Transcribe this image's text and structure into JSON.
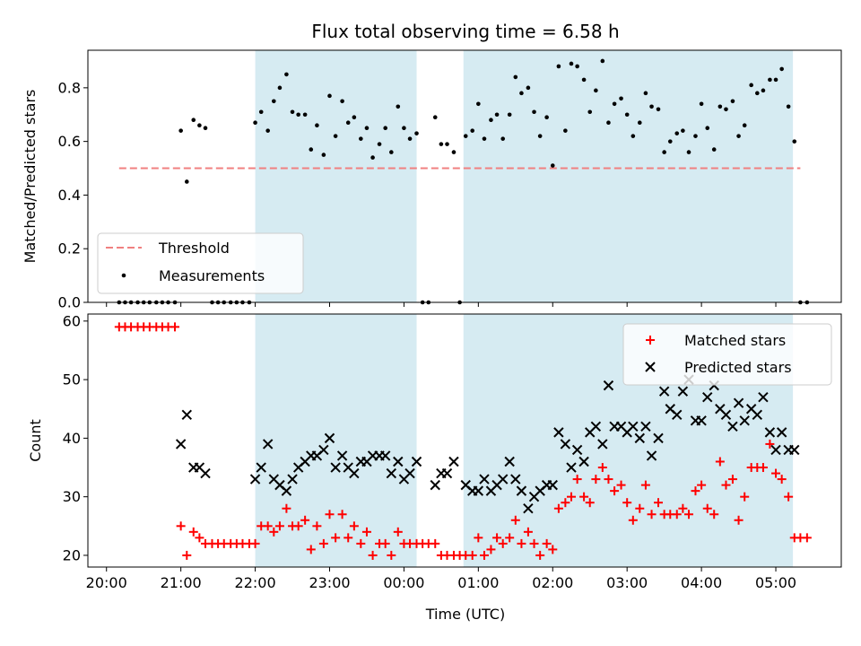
{
  "chart_data": [
    {
      "type": "scatter",
      "title": "Flux total observing time = 6.58 h",
      "xlabel": "",
      "ylabel": "Matched/Predicted stars",
      "xlim": [
        19.75,
        29.88
      ],
      "ylim": [
        0,
        0.94
      ],
      "yticks": [
        0.0,
        0.2,
        0.4,
        0.6,
        0.8
      ],
      "ytick_labels": [
        "0.0",
        "0.2",
        "0.4",
        "0.6",
        "0.8"
      ],
      "shaded_regions": [
        [
          22.0,
          24.17
        ],
        [
          24.8,
          29.23
        ]
      ],
      "legend": {
        "position": "lower-left",
        "entries": [
          "Threshold",
          "Measurements"
        ]
      },
      "series": [
        {
          "name": "Threshold",
          "kind": "dashed-line",
          "color": "#f08080",
          "x": [
            20.17,
            29.33
          ],
          "y": [
            0.5,
            0.5
          ]
        },
        {
          "name": "Measurements",
          "kind": "points",
          "color": "#000000",
          "x": [
            20.17,
            20.25,
            20.33,
            20.42,
            20.5,
            20.58,
            20.67,
            20.75,
            20.83,
            20.92,
            21.0,
            21.08,
            21.17,
            21.25,
            21.33,
            21.42,
            21.5,
            21.58,
            21.67,
            21.75,
            21.83,
            21.92,
            22.0,
            22.08,
            22.17,
            22.25,
            22.33,
            22.42,
            22.5,
            22.58,
            22.67,
            22.75,
            22.83,
            22.92,
            23.0,
            23.08,
            23.17,
            23.25,
            23.33,
            23.42,
            23.5,
            23.58,
            23.67,
            23.75,
            23.83,
            23.92,
            24.0,
            24.08,
            24.17,
            24.25,
            24.33,
            24.42,
            24.5,
            24.58,
            24.67,
            24.75,
            24.83,
            24.92,
            25.0,
            25.08,
            25.17,
            25.25,
            25.33,
            25.42,
            25.5,
            25.58,
            25.67,
            25.75,
            25.83,
            25.92,
            26.0,
            26.08,
            26.17,
            26.25,
            26.33,
            26.42,
            26.5,
            26.58,
            26.67,
            26.75,
            26.83,
            26.92,
            27.0,
            27.08,
            27.17,
            27.25,
            27.33,
            27.42,
            27.5,
            27.58,
            27.67,
            27.75,
            27.83,
            27.92,
            28.0,
            28.08,
            28.17,
            28.25,
            28.33,
            28.42,
            28.5,
            28.58,
            28.67,
            28.75,
            28.83,
            28.92,
            29.0,
            29.08,
            29.17,
            29.25,
            29.33,
            29.42
          ],
          "y": [
            0,
            0,
            0,
            0,
            0,
            0,
            0,
            0,
            0,
            0,
            0.64,
            0.45,
            0.68,
            0.66,
            0.65,
            0,
            0,
            0,
            0,
            0,
            0,
            0,
            0.67,
            0.71,
            0.64,
            0.75,
            0.8,
            0.85,
            0.71,
            0.7,
            0.7,
            0.57,
            0.66,
            0.55,
            0.77,
            0.62,
            0.75,
            0.67,
            0.69,
            0.61,
            0.65,
            0.54,
            0.59,
            0.65,
            0.56,
            0.73,
            0.65,
            0.61,
            0.63,
            0,
            0,
            0.69,
            0.59,
            0.59,
            0.56,
            0,
            0.62,
            0.64,
            0.74,
            0.61,
            0.68,
            0.7,
            0.61,
            0.7,
            0.84,
            0.78,
            0.8,
            0.71,
            0.62,
            0.69,
            0.51,
            0.88,
            0.64,
            0.89,
            0.88,
            0.83,
            0.71,
            0.79,
            0.9,
            0.67,
            0.74,
            0.76,
            0.7,
            0.62,
            0.67,
            0.78,
            0.73,
            0.72,
            0.56,
            0.6,
            0.63,
            0.64,
            0.56,
            0.62,
            0.74,
            0.65,
            0.57,
            0.73,
            0.72,
            0.75,
            0.62,
            0.66,
            0.81,
            0.78,
            0.79,
            0.83,
            0.83,
            0.87,
            0.73,
            0.6,
            0,
            0
          ]
        }
      ]
    },
    {
      "type": "scatter",
      "title": "",
      "xlabel": "Time (UTC)",
      "ylabel": "Count",
      "xlim": [
        19.75,
        29.88
      ],
      "ylim": [
        18,
        61.2
      ],
      "xticks": [
        20,
        21,
        22,
        23,
        24,
        25,
        26,
        27,
        28,
        29
      ],
      "xtick_labels": [
        "20:00",
        "21:00",
        "22:00",
        "23:00",
        "00:00",
        "01:00",
        "02:00",
        "03:00",
        "04:00",
        "05:00"
      ],
      "yticks": [
        20,
        30,
        40,
        50,
        60
      ],
      "ytick_labels": [
        "20",
        "30",
        "40",
        "50",
        "60"
      ],
      "shaded_regions": [
        [
          22.0,
          24.17
        ],
        [
          24.8,
          29.23
        ]
      ],
      "legend": {
        "position": "top-right",
        "entries": [
          "Matched stars",
          "Predicted stars"
        ]
      },
      "series": [
        {
          "name": "Matched stars",
          "marker": "plus",
          "color": "#ff0000",
          "x": [
            20.17,
            20.25,
            20.33,
            20.42,
            20.5,
            20.58,
            20.67,
            20.75,
            20.83,
            20.92,
            21.0,
            21.08,
            21.17,
            21.25,
            21.33,
            21.42,
            21.5,
            21.58,
            21.67,
            21.75,
            21.83,
            21.92,
            22.0,
            22.08,
            22.17,
            22.25,
            22.33,
            22.42,
            22.5,
            22.58,
            22.67,
            22.75,
            22.83,
            22.92,
            23.0,
            23.08,
            23.17,
            23.25,
            23.33,
            23.42,
            23.5,
            23.58,
            23.67,
            23.75,
            23.83,
            23.92,
            24.0,
            24.08,
            24.17,
            24.25,
            24.33,
            24.42,
            24.5,
            24.58,
            24.67,
            24.75,
            24.83,
            24.92,
            25.0,
            25.08,
            25.17,
            25.25,
            25.33,
            25.42,
            25.5,
            25.58,
            25.67,
            25.75,
            25.83,
            25.92,
            26.0,
            26.08,
            26.17,
            26.25,
            26.33,
            26.42,
            26.5,
            26.58,
            26.67,
            26.75,
            26.83,
            26.92,
            27.0,
            27.08,
            27.17,
            27.25,
            27.33,
            27.42,
            27.5,
            27.58,
            27.67,
            27.75,
            27.83,
            27.92,
            28.0,
            28.08,
            28.17,
            28.25,
            28.33,
            28.42,
            28.5,
            28.58,
            28.67,
            28.75,
            28.83,
            28.92,
            29.0,
            29.08,
            29.17,
            29.25,
            29.33,
            29.42
          ],
          "y": [
            59,
            59,
            59,
            59,
            59,
            59,
            59,
            59,
            59,
            59,
            25,
            20,
            24,
            23,
            22,
            22,
            22,
            22,
            22,
            22,
            22,
            22,
            22,
            25,
            25,
            24,
            25,
            28,
            25,
            25,
            26,
            21,
            25,
            22,
            27,
            23,
            27,
            23,
            25,
            22,
            24,
            20,
            22,
            22,
            20,
            24,
            22,
            22,
            22,
            22,
            22,
            22,
            20,
            20,
            20,
            20,
            20,
            20,
            23,
            20,
            21,
            23,
            22,
            23,
            26,
            22,
            24,
            22,
            20,
            22,
            21,
            28,
            29,
            30,
            33,
            30,
            29,
            33,
            35,
            33,
            31,
            32,
            29,
            26,
            28,
            32,
            27,
            29,
            27,
            27,
            27,
            28,
            27,
            31,
            32,
            28,
            27,
            36,
            32,
            33,
            26,
            30,
            35,
            35,
            35,
            39,
            34,
            33,
            30,
            23,
            23,
            23
          ]
        },
        {
          "name": "Predicted stars",
          "marker": "x",
          "color": "#000000",
          "x": [
            21.0,
            21.08,
            21.17,
            21.25,
            21.33,
            22.0,
            22.08,
            22.17,
            22.25,
            22.33,
            22.42,
            22.5,
            22.58,
            22.67,
            22.75,
            22.83,
            22.92,
            23.0,
            23.08,
            23.17,
            23.25,
            23.33,
            23.42,
            23.5,
            23.58,
            23.67,
            23.75,
            23.83,
            23.92,
            24.0,
            24.08,
            24.17,
            24.42,
            24.5,
            24.58,
            24.67,
            24.83,
            24.92,
            25.0,
            25.08,
            25.17,
            25.25,
            25.33,
            25.42,
            25.5,
            25.58,
            25.67,
            25.75,
            25.83,
            25.92,
            26.0,
            26.08,
            26.17,
            26.25,
            26.33,
            26.42,
            26.5,
            26.58,
            26.67,
            26.75,
            26.83,
            26.92,
            27.0,
            27.08,
            27.17,
            27.25,
            27.33,
            27.42,
            27.5,
            27.58,
            27.67,
            27.75,
            27.83,
            27.92,
            28.0,
            28.08,
            28.17,
            28.25,
            28.33,
            28.42,
            28.5,
            28.58,
            28.67,
            28.75,
            28.83,
            28.92,
            29.0,
            29.08,
            29.17,
            29.25
          ],
          "y": [
            39,
            44,
            35,
            35,
            34,
            33,
            35,
            39,
            33,
            32,
            31,
            33,
            35,
            36,
            37,
            37,
            38,
            40,
            35,
            37,
            35,
            34,
            36,
            36,
            37,
            37,
            37,
            34,
            36,
            33,
            34,
            36,
            32,
            34,
            34,
            36,
            32,
            31,
            31,
            33,
            31,
            32,
            33,
            36,
            33,
            31,
            28,
            30,
            31,
            32,
            32,
            41,
            39,
            35,
            38,
            36,
            41,
            42,
            39,
            49,
            42,
            42,
            41,
            42,
            40,
            42,
            37,
            40,
            48,
            45,
            44,
            48,
            50,
            43,
            43,
            47,
            49,
            45,
            44,
            42,
            46,
            43,
            45,
            44,
            47,
            41,
            38,
            41,
            38,
            38
          ]
        }
      ]
    }
  ]
}
